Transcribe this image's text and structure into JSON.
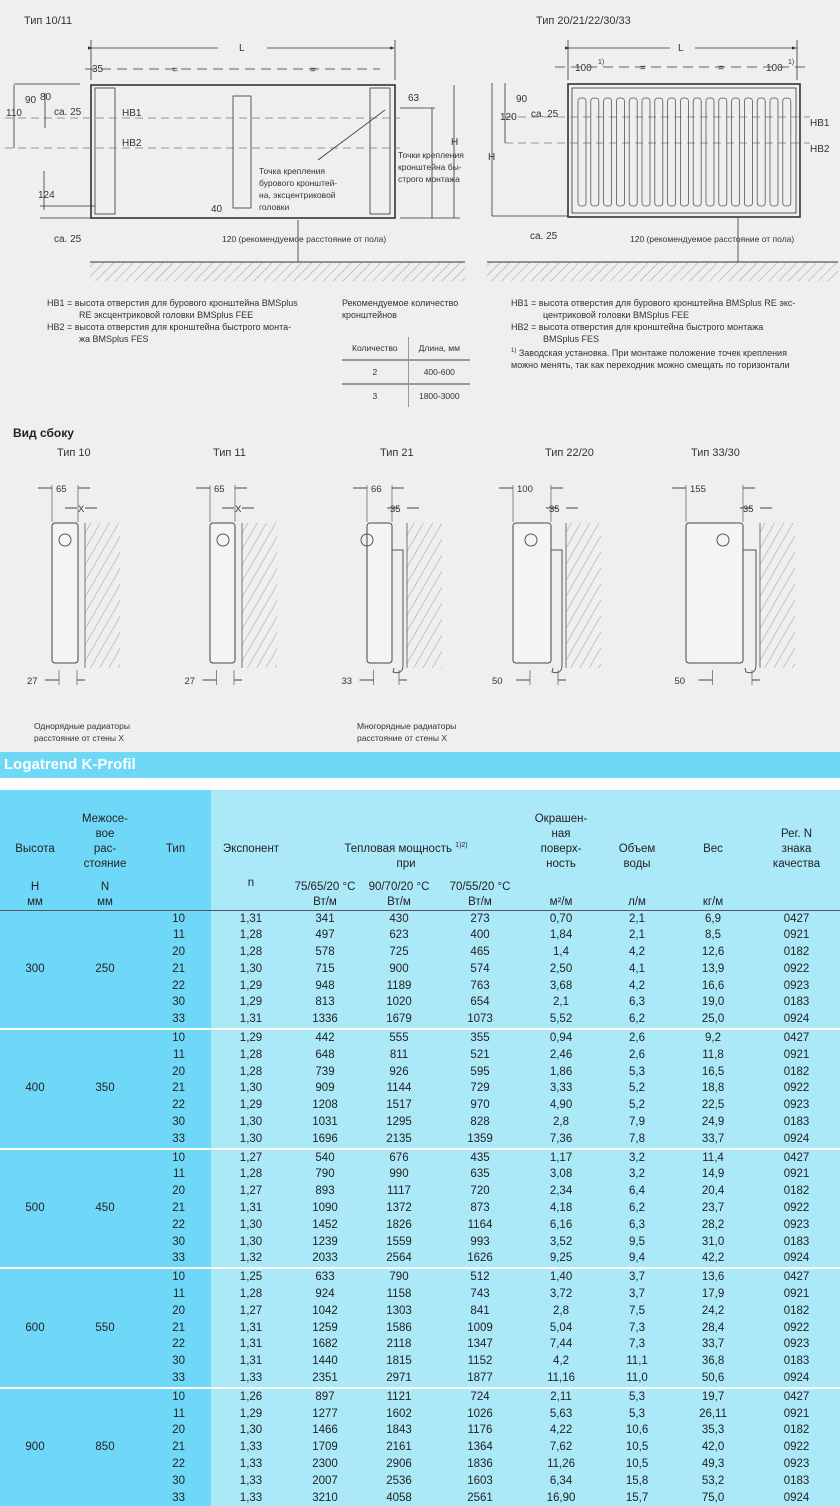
{
  "front_views": {
    "left": {
      "title": "Тип 10/11",
      "dims": {
        "L": "L",
        "d35": "35",
        "eq1": "=",
        "eq2": "=",
        "d90": "90",
        "d80": "80",
        "d110": "110",
        "ca25_top": "ca. 25",
        "hb1": "HB1",
        "hb2": "HB2",
        "d63": "63",
        "H": "H",
        "d124": "124",
        "d40": "40",
        "ca25_bottom": "ca. 25"
      },
      "callout_drill": [
        "Точка крепления",
        "бурового кронштей-",
        "на, эксцентриковой",
        "головки"
      ],
      "callout_quick": [
        "Точки крепления",
        "кронштейна бы-",
        "строго монтажа"
      ],
      "floor_note": "120 (рекомендуемое расстояние от пола)"
    },
    "right": {
      "title": "Тип 20/21/22/30/33",
      "dims": {
        "L": "L",
        "d100_left": "100",
        "sup1": "1)",
        "eq1": "=",
        "eq2": "=",
        "d100_right": "100",
        "sup2": "1)",
        "d90": "90",
        "d120": "120",
        "ca25_top": "ca. 25",
        "H": "H",
        "hb1": "HB1",
        "hb2": "HB2",
        "ca25_bottom": "ca. 25"
      },
      "floor_note": "120 (рекомендуемое расстояние от пола)"
    }
  },
  "notes_left": {
    "hb1_line1": "HB1 = высота отверстия для бурового кронштейна BMSplus",
    "hb1_line2": "RE эксцентриковой головки BMSplus FEE",
    "hb2_line1": "HB2 = высота отверстия для кронштейна быстрого монта-",
    "hb2_line2": "жа BMSplus FES"
  },
  "brackets": {
    "title_line1": "Рекомендуемое количество",
    "title_line2": "кронштейнов",
    "headers": [
      "Количество",
      "Длина, мм"
    ],
    "rows": [
      [
        "2",
        "400-600"
      ],
      [
        "3",
        "1800-3000"
      ]
    ]
  },
  "notes_right": {
    "hb1_line1": "HB1 = высота отверстия для бурового кронштейна BMSplus RE экс-",
    "hb1_line2": "центриковой головки BMSplus FEE",
    "hb2_line1": "HB2 = высота отверстия для кронштейна быстрого монтажа",
    "hb2_line2": "BMSplus FES",
    "footnote_mark": "1)",
    "footnote_line1": " Заводская установка. При монтаже положение точек крепления",
    "footnote_line2": "можно менять, так как переходник можно смещать по горизонтали"
  },
  "side_view": {
    "heading": "Вид сбоку",
    "types": [
      {
        "title": "Тип 10",
        "width": "65",
        "gap": "X",
        "bottom": "27"
      },
      {
        "title": "Тип 11",
        "width": "65",
        "gap": "X",
        "bottom": "27"
      },
      {
        "title": "Тип 21",
        "width": "66",
        "gap": "35",
        "bottom": "33"
      },
      {
        "title": "Тип 22/20",
        "width": "100",
        "gap": "35",
        "bottom": "50"
      },
      {
        "title": "Тип 33/30",
        "width": "155",
        "gap": "35",
        "bottom": "50"
      }
    ],
    "caption_single_1": "Однорядные радиаторы",
    "caption_single_2": "расстояние от стены X",
    "caption_multi_1": "Многорядные радиаторы",
    "caption_multi_2": "расстояние от стены X"
  },
  "product_title": "Logatrend K-Profil",
  "colors": {
    "title_bar": "#6fd8f6",
    "left_cells": "#6fd8f8",
    "right_cells": "#abe8f8",
    "background": "#eeeff0"
  },
  "table": {
    "headers": {
      "height": "Высота",
      "spacing": [
        "Межосе-",
        "вое",
        "рас-",
        "стояние"
      ],
      "type": "Тип",
      "exponent": "Экспонент",
      "power": "Тепловая мощность",
      "power_sup": "1)2)",
      "power_at": "при",
      "surface": [
        "Окрашен-",
        "ная",
        "поверх-",
        "ность"
      ],
      "water": [
        "Объем",
        "воды"
      ],
      "weight": "Вес",
      "reg": [
        "Рег. N",
        "знака",
        "качества"
      ]
    },
    "units": {
      "height": [
        "H",
        "мм"
      ],
      "spacing": [
        "N",
        "мм"
      ],
      "exponent": "n",
      "p1": [
        "75/65/20 °C",
        "Вт/м"
      ],
      "p2": [
        "90/70/20 °C",
        "Вт/м"
      ],
      "p3": [
        "70/55/20 °C",
        "Вт/м"
      ],
      "surface": "м²/м",
      "water": "л/м",
      "weight": "кг/м"
    },
    "groups": [
      {
        "height": "300",
        "spacing": "250",
        "rows": [
          [
            "10",
            "1,31",
            "341",
            "430",
            "273",
            "0,70",
            "2,1",
            "6,9",
            "0427"
          ],
          [
            "11",
            "1,28",
            "497",
            "623",
            "400",
            "1,84",
            "2,1",
            "8,5",
            "0921"
          ],
          [
            "20",
            "1,28",
            "578",
            "725",
            "465",
            "1,4",
            "4,2",
            "12,6",
            "0182"
          ],
          [
            "21",
            "1,30",
            "715",
            "900",
            "574",
            "2,50",
            "4,1",
            "13,9",
            "0922"
          ],
          [
            "22",
            "1,29",
            "948",
            "1189",
            "763",
            "3,68",
            "4,2",
            "16,6",
            "0923"
          ],
          [
            "30",
            "1,29",
            "813",
            "1020",
            "654",
            "2,1",
            "6,3",
            "19,0",
            "0183"
          ],
          [
            "33",
            "1,31",
            "1336",
            "1679",
            "1073",
            "5,52",
            "6,2",
            "25,0",
            "0924"
          ]
        ]
      },
      {
        "height": "400",
        "spacing": "350",
        "rows": [
          [
            "10",
            "1,29",
            "442",
            "555",
            "355",
            "0,94",
            "2,6",
            "9,2",
            "0427"
          ],
          [
            "11",
            "1,28",
            "648",
            "811",
            "521",
            "2,46",
            "2,6",
            "11,8",
            "0921"
          ],
          [
            "20",
            "1,28",
            "739",
            "926",
            "595",
            "1,86",
            "5,3",
            "16,5",
            "0182"
          ],
          [
            "21",
            "1,30",
            "909",
            "1144",
            "729",
            "3,33",
            "5,2",
            "18,8",
            "0922"
          ],
          [
            "22",
            "1,29",
            "1208",
            "1517",
            "970",
            "4,90",
            "5,2",
            "22,5",
            "0923"
          ],
          [
            "30",
            "1,30",
            "1031",
            "1295",
            "828",
            "2,8",
            "7,9",
            "24,9",
            "0183"
          ],
          [
            "33",
            "1,30",
            "1696",
            "2135",
            "1359",
            "7,36",
            "7,8",
            "33,7",
            "0924"
          ]
        ]
      },
      {
        "height": "500",
        "spacing": "450",
        "rows": [
          [
            "10",
            "1,27",
            "540",
            "676",
            "435",
            "1,17",
            "3,2",
            "11,4",
            "0427"
          ],
          [
            "11",
            "1,28",
            "790",
            "990",
            "635",
            "3,08",
            "3,2",
            "14,9",
            "0921"
          ],
          [
            "20",
            "1,27",
            "893",
            "1117",
            "720",
            "2,34",
            "6,4",
            "20,4",
            "0182"
          ],
          [
            "21",
            "1,31",
            "1090",
            "1372",
            "873",
            "4,18",
            "6,2",
            "23,7",
            "0922"
          ],
          [
            "22",
            "1,30",
            "1452",
            "1826",
            "1164",
            "6,16",
            "6,3",
            "28,2",
            "0923"
          ],
          [
            "30",
            "1,30",
            "1239",
            "1559",
            "993",
            "3,52",
            "9,5",
            "31,0",
            "0183"
          ],
          [
            "33",
            "1,32",
            "2033",
            "2564",
            "1626",
            "9,25",
            "9,4",
            "42,2",
            "0924"
          ]
        ]
      },
      {
        "height": "600",
        "spacing": "550",
        "rows": [
          [
            "10",
            "1,25",
            "633",
            "790",
            "512",
            "1,40",
            "3,7",
            "13,6",
            "0427"
          ],
          [
            "11",
            "1,28",
            "924",
            "1158",
            "743",
            "3,72",
            "3,7",
            "17,9",
            "0921"
          ],
          [
            "20",
            "1,27",
            "1042",
            "1303",
            "841",
            "2,8",
            "7,5",
            "24,2",
            "0182"
          ],
          [
            "21",
            "1,31",
            "1259",
            "1586",
            "1009",
            "5,04",
            "7,3",
            "28,4",
            "0922"
          ],
          [
            "22",
            "1,31",
            "1682",
            "2118",
            "1347",
            "7,44",
            "7,3",
            "33,7",
            "0923"
          ],
          [
            "30",
            "1,31",
            "1440",
            "1815",
            "1152",
            "4,2",
            "11,1",
            "36,8",
            "0183"
          ],
          [
            "33",
            "1,33",
            "2351",
            "2971",
            "1877",
            "11,16",
            "11,0",
            "50,6",
            "0924"
          ]
        ]
      },
      {
        "height": "900",
        "spacing": "850",
        "rows": [
          [
            "10",
            "1,26",
            "897",
            "1121",
            "724",
            "2,11",
            "5,3",
            "19,7",
            "0427"
          ],
          [
            "11",
            "1,29",
            "1277",
            "1602",
            "1026",
            "5,63",
            "5,3",
            "26,11",
            "0921"
          ],
          [
            "20",
            "1,30",
            "1466",
            "1843",
            "1176",
            "4,22",
            "10,6",
            "35,3",
            "0182"
          ],
          [
            "21",
            "1,33",
            "1709",
            "2161",
            "1364",
            "7,62",
            "10,5",
            "42,0",
            "0922"
          ],
          [
            "22",
            "1,33",
            "2300",
            "2906",
            "1836",
            "11,26",
            "10,5",
            "49,3",
            "0923"
          ],
          [
            "30",
            "1,33",
            "2007",
            "2536",
            "1603",
            "6,34",
            "15,8",
            "53,2",
            "0183"
          ],
          [
            "33",
            "1,33",
            "3210",
            "4058",
            "2561",
            "16,90",
            "15,7",
            "75,0",
            "0924"
          ]
        ]
      }
    ]
  }
}
